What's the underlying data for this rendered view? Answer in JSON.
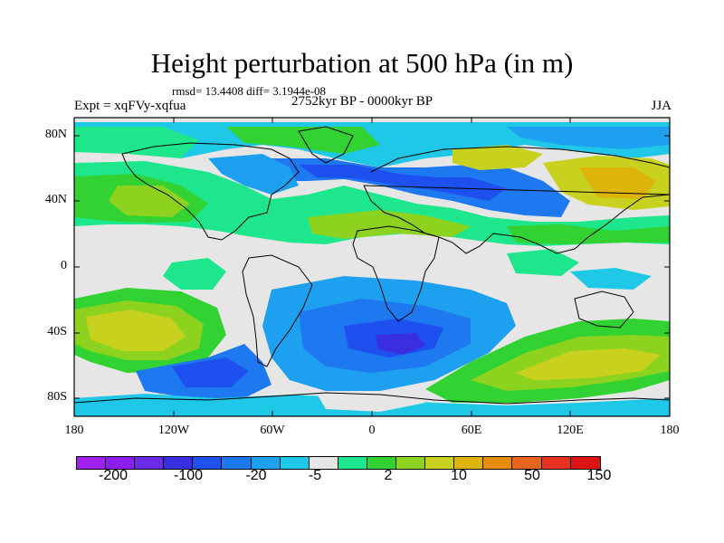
{
  "title": "Height perturbation at 500 hPa (in m)",
  "stats": "rmsd= 13.4408 diff= 3.1944e-08",
  "experiment": "Expt = xqFVy-xqfua",
  "period": "2752kyr BP - 0000kyr BP",
  "season": "JJA",
  "y_ticks": [
    "80N",
    "40N",
    "0",
    "40S",
    "80S"
  ],
  "x_ticks": [
    "180",
    "120W",
    "60W",
    "0",
    "60E",
    "120E",
    "180"
  ],
  "colorbar": {
    "colors": [
      "#a020f0",
      "#8c1ff0",
      "#6a2ae6",
      "#3a2fe0",
      "#1e50f0",
      "#1e78f0",
      "#1ea0f0",
      "#1ec8e6",
      "#e6e6e6",
      "#1ee68c",
      "#32d232",
      "#8cd21e",
      "#c8d21e",
      "#dcb40a",
      "#e68c0a",
      "#e6641e",
      "#e6321e",
      "#dc1414"
    ],
    "labels": [
      "-200",
      "-100",
      "-20",
      "-5",
      "2",
      "10",
      "50",
      "150"
    ]
  },
  "map_colors": {
    "neutral": "#e6e6e6",
    "c_blue_dark": "#1e50f0",
    "c_blue_deep": "#3a2fe0",
    "c_blue": "#1e78f0",
    "c_sky": "#1ea0f0",
    "c_cyan": "#1ec8e6",
    "c_teal": "#1ee68c",
    "c_green": "#32d232",
    "c_lime": "#8cd21e",
    "c_yellow": "#c8d21e",
    "c_gold": "#dcb40a"
  }
}
